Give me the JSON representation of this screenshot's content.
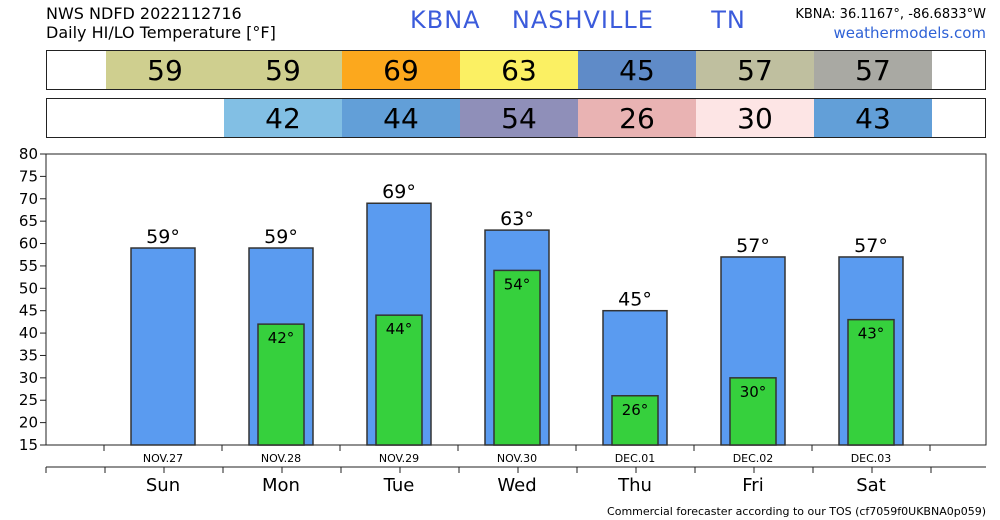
{
  "header": {
    "line1": "NWS NDFD 2022112716",
    "line2": "Daily HI/LO Temperature [°F]",
    "station": "KBNA",
    "city": "NASHVILLE",
    "state": "TN",
    "coords": "KBNA: 36.1167°, -86.6833°W",
    "site": "weathermodels.com"
  },
  "hi_band": [
    {
      "text": "59",
      "color": "#cfcf8f"
    },
    {
      "text": "59",
      "color": "#cfcf8f"
    },
    {
      "text": "69",
      "color": "#fca81d"
    },
    {
      "text": "63",
      "color": "#fbf063"
    },
    {
      "text": "45",
      "color": "#5f8bc8"
    },
    {
      "text": "57",
      "color": "#bfbf9f"
    },
    {
      "text": "57",
      "color": "#a9a9a3"
    }
  ],
  "lo_band": [
    {
      "text": "",
      "color": "#ffffff"
    },
    {
      "text": "42",
      "color": "#82bfe4"
    },
    {
      "text": "44",
      "color": "#629fd8"
    },
    {
      "text": "54",
      "color": "#8f8fb9"
    },
    {
      "text": "26",
      "color": "#e9b3b3"
    },
    {
      "text": "30",
      "color": "#fde5e5"
    },
    {
      "text": "43",
      "color": "#629fd8"
    }
  ],
  "chart_data": {
    "type": "bar",
    "categories": [
      "Sun",
      "Mon",
      "Tue",
      "Wed",
      "Thu",
      "Fri",
      "Sat"
    ],
    "dates": [
      "NOV.27",
      "NOV.28",
      "NOV.29",
      "NOV.30",
      "DEC.01",
      "DEC.02",
      "DEC.03"
    ],
    "series": [
      {
        "values": [
          59,
          59,
          69,
          63,
          45,
          57,
          57
        ],
        "color": "#5a9bf0",
        "labels": [
          "59°",
          "59°",
          "69°",
          "63°",
          "45°",
          "57°",
          "57°"
        ]
      },
      {
        "values": [
          null,
          42,
          44,
          54,
          26,
          30,
          43
        ],
        "color": "#36d03d",
        "labels": [
          "",
          "42°",
          "44°",
          "54°",
          "26°",
          "30°",
          "43°"
        ]
      }
    ],
    "yticks": [
      15,
      20,
      25,
      30,
      35,
      40,
      45,
      50,
      55,
      60,
      65,
      70,
      75,
      80
    ],
    "ylim": [
      15,
      80
    ],
    "grid": false
  },
  "footer": "Commercial forecaster according to our TOS (cf7059f0UKBNA0p059)"
}
